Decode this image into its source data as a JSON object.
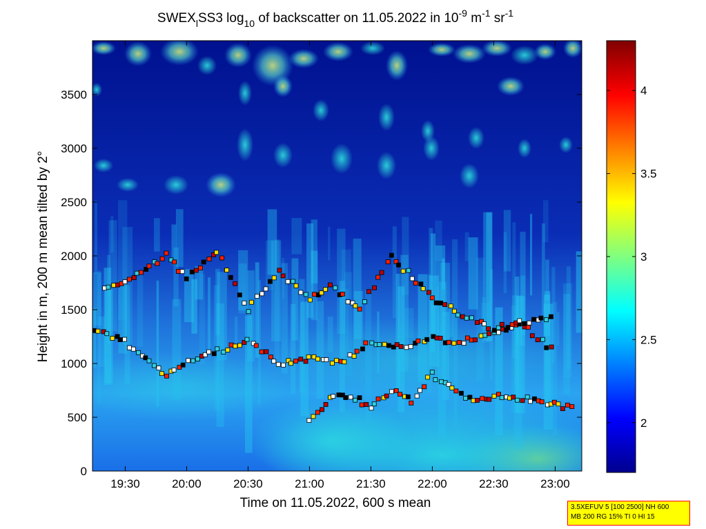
{
  "chart_data": {
    "type": "heatmap",
    "title": {
      "prefix": "SWEX",
      "sub1": "l",
      "mid": "SS3 log",
      "sub2": "10",
      "suffix1": " of backscatter on 11.05.2022 in 10",
      "sup1": "-9",
      "suffix2": " m",
      "sup2": "-1",
      "suffix3": " sr",
      "sup3": "-1"
    },
    "xlabel": "Time on 11.05.2022, 600 s mean",
    "ylabel": "Height in m, 200 m mean tilted by 2°",
    "x_tick_labels": [
      "19:30",
      "20:00",
      "20:30",
      "21:00",
      "21:30",
      "22:00",
      "22:30",
      "23:00"
    ],
    "x_range": [
      "19:14",
      "23:13"
    ],
    "y_ticks": [
      0,
      500,
      1000,
      1500,
      2000,
      2500,
      3000,
      3500
    ],
    "ylim": [
      0,
      4000
    ],
    "colorbar": {
      "ticks": [
        "2",
        "2.5",
        "3",
        "3.5",
        "4"
      ],
      "tick_values": [
        2,
        2.5,
        3,
        3.5,
        4
      ],
      "range": [
        1.7,
        4.3
      ],
      "colormap": "jet"
    },
    "cloud_base_layers": [
      {
        "name": "layer-low",
        "points": [
          [
            "21:00",
            460
          ],
          [
            "21:10",
            680
          ],
          [
            "21:20",
            700
          ],
          [
            "21:30",
            600
          ],
          [
            "21:40",
            750
          ],
          [
            "21:50",
            650
          ],
          [
            "22:00",
            900
          ],
          [
            "22:10",
            750
          ],
          [
            "22:20",
            650
          ],
          [
            "22:30",
            700
          ],
          [
            "22:40",
            690
          ],
          [
            "22:50",
            650
          ],
          [
            "23:00",
            620
          ],
          [
            "23:10",
            580
          ]
        ]
      },
      {
        "name": "layer-mid",
        "points": [
          [
            "19:15",
            1300
          ],
          [
            "19:30",
            1200
          ],
          [
            "19:50",
            900
          ],
          [
            "20:05",
            1050
          ],
          [
            "20:30",
            1200
          ],
          [
            "20:45",
            1000
          ],
          [
            "21:00",
            1050
          ],
          [
            "21:15",
            1000
          ],
          [
            "21:30",
            1200
          ],
          [
            "21:45",
            1150
          ],
          [
            "22:00",
            1230
          ],
          [
            "22:15",
            1200
          ],
          [
            "22:30",
            1300
          ],
          [
            "22:45",
            1350
          ],
          [
            "23:00",
            1100
          ]
        ]
      },
      {
        "name": "layer-high",
        "points": [
          [
            "19:20",
            1700
          ],
          [
            "19:30",
            1750
          ],
          [
            "19:50",
            2000
          ],
          [
            "20:00",
            1800
          ],
          [
            "20:15",
            2050
          ],
          [
            "20:30",
            1500
          ],
          [
            "20:45",
            1850
          ],
          [
            "21:00",
            1600
          ],
          [
            "21:10",
            1720
          ],
          [
            "21:25",
            1500
          ],
          [
            "21:40",
            2000
          ],
          [
            "22:00",
            1600
          ],
          [
            "22:15",
            1450
          ],
          [
            "22:30",
            1330
          ],
          [
            "22:45",
            1380
          ],
          [
            "23:00",
            1430
          ]
        ]
      }
    ]
  },
  "info_box": {
    "line1": "3.5XEFUV 5 [100 2500] NH 600",
    "line2": "MB 200 RG 15% TI 0 HI 15"
  }
}
